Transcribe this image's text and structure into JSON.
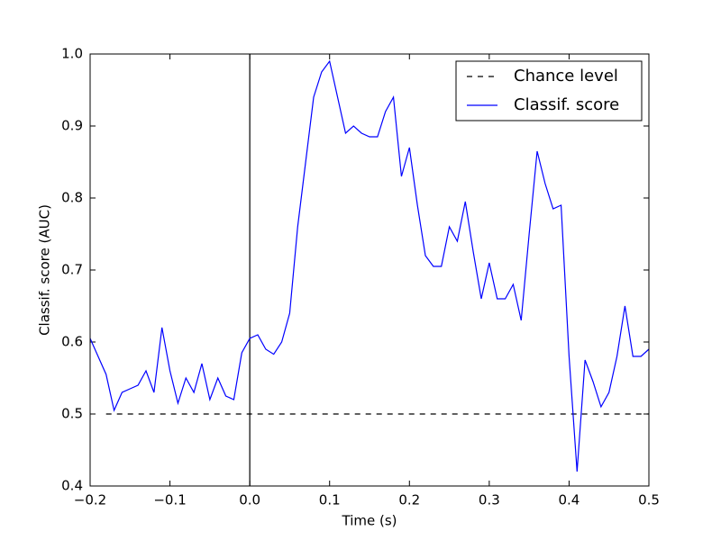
{
  "chart_data": {
    "type": "line",
    "xlabel": "Time (s)",
    "ylabel": "Classif. score (AUC)",
    "xlim": [
      -0.2,
      0.5
    ],
    "ylim": [
      0.4,
      1.0
    ],
    "xticks": [
      {
        "value": -0.2,
        "label": "−0.2"
      },
      {
        "value": -0.1,
        "label": "−0.1"
      },
      {
        "value": 0,
        "label": "0.0"
      },
      0.1,
      0.2,
      0.3,
      0.4,
      0.5
    ],
    "yticks": [
      0.4,
      0.5,
      0.6,
      0.7,
      0.8,
      0.9,
      {
        "value": 1.0,
        "label": "1.0"
      }
    ],
    "vlines": [
      0
    ],
    "legend": "upper right",
    "series": [
      {
        "name": "Chance level",
        "color": "#000000",
        "linestyle": "dashed",
        "x": [
          -0.18,
          0.5
        ],
        "values": [
          0.5,
          0.5
        ]
      },
      {
        "name": "Classif. score",
        "color": "#0000ff",
        "linestyle": "solid",
        "x": [
          -0.2,
          -0.19,
          -0.18,
          -0.17,
          -0.16,
          -0.15,
          -0.14,
          -0.13,
          -0.12,
          -0.11,
          -0.1,
          -0.09,
          -0.08,
          -0.07,
          -0.06,
          -0.05,
          -0.04,
          -0.03,
          -0.02,
          -0.01,
          0,
          0.01,
          0.02,
          0.03,
          0.04,
          0.05,
          0.06,
          0.07,
          0.08,
          0.09,
          0.1,
          0.11,
          0.12,
          0.13,
          0.14,
          0.15,
          0.16,
          0.17,
          0.18,
          0.19,
          0.2,
          0.21,
          0.22,
          0.23,
          0.24,
          0.25,
          0.26,
          0.27,
          0.28,
          0.29,
          0.3,
          0.31,
          0.32,
          0.33,
          0.34,
          0.35,
          0.36,
          0.37,
          0.38,
          0.39,
          0.4,
          0.41,
          0.42,
          0.43,
          0.44,
          0.45,
          0.46,
          0.47,
          0.48,
          0.49,
          0.5
        ],
        "values": [
          0.605,
          0.58,
          0.555,
          0.505,
          0.53,
          0.535,
          0.54,
          0.56,
          0.53,
          0.62,
          0.56,
          0.515,
          0.55,
          0.53,
          0.57,
          0.52,
          0.55,
          0.525,
          0.52,
          0.585,
          0.605,
          0.61,
          0.59,
          0.583,
          0.6,
          0.64,
          0.76,
          0.85,
          0.94,
          0.975,
          0.99,
          0.94,
          0.89,
          0.9,
          0.89,
          0.885,
          0.885,
          0.92,
          0.94,
          0.83,
          0.87,
          0.79,
          0.72,
          0.705,
          0.705,
          0.76,
          0.74,
          0.795,
          0.725,
          0.66,
          0.71,
          0.66,
          0.66,
          0.68,
          0.63,
          0.75,
          0.865,
          0.82,
          0.785,
          0.79,
          0.58,
          0.42,
          0.575,
          0.545,
          0.51,
          0.53,
          0.58,
          0.65,
          0.58,
          0.58,
          0.59
        ]
      }
    ]
  }
}
